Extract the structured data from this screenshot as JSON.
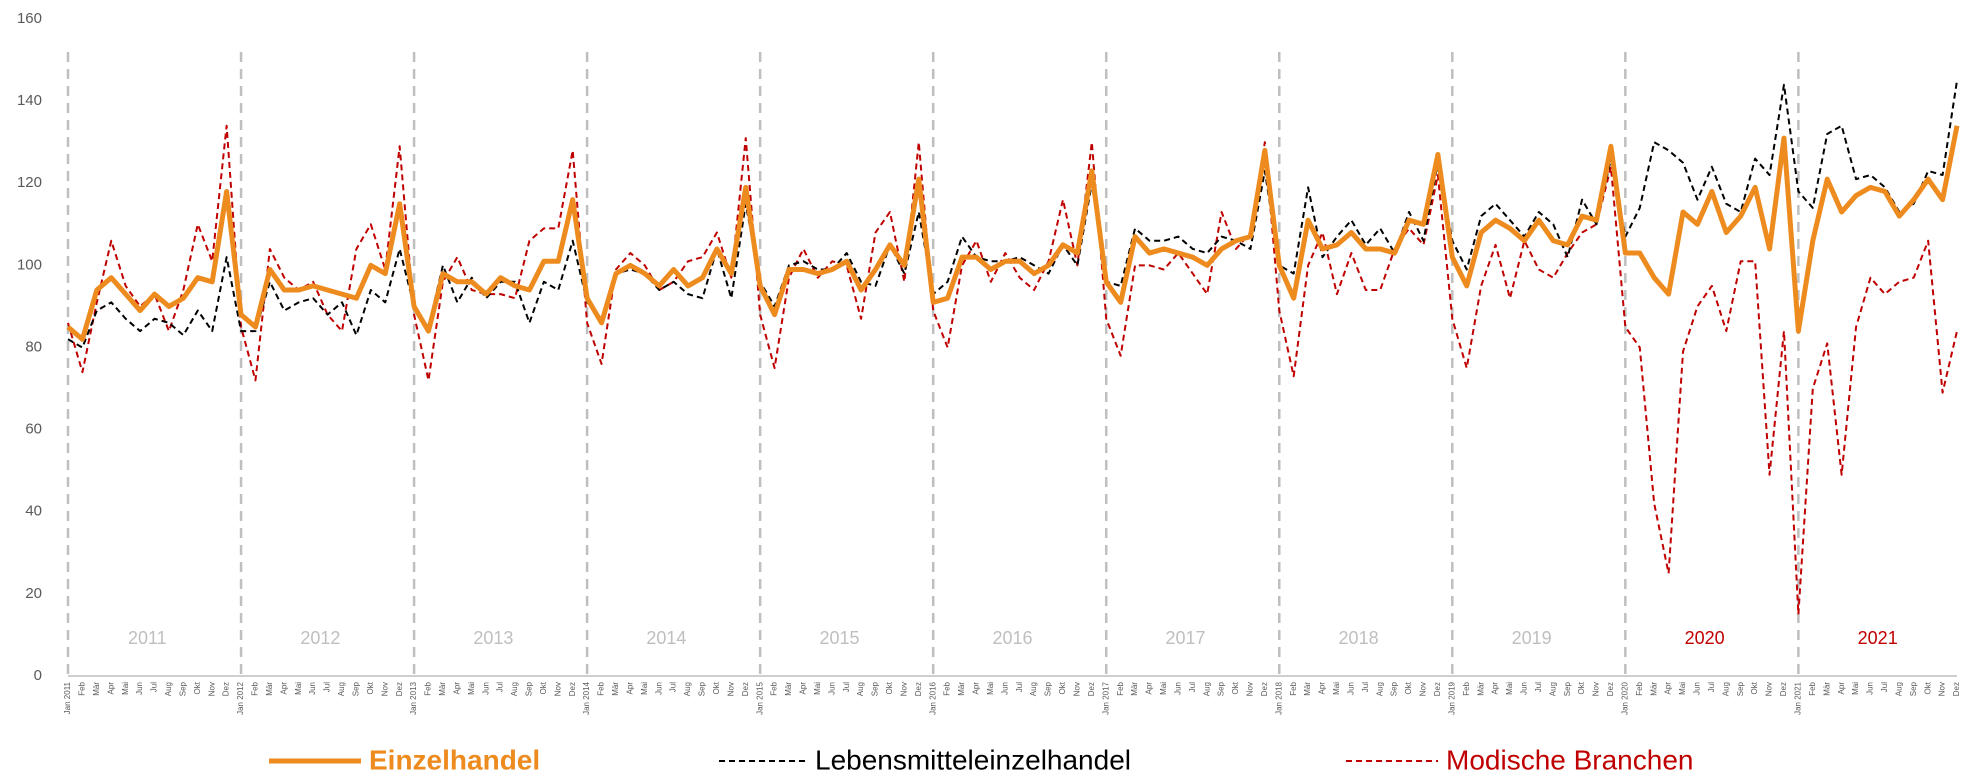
{
  "chart_data": {
    "type": "line",
    "categories": [
      "Jan 2011",
      "Feb",
      "Mär",
      "Apr",
      "Mai",
      "Jun",
      "Jul",
      "Aug",
      "Sep",
      "Okt",
      "Nov",
      "Dez",
      "Jan 2012",
      "Feb",
      "Mär",
      "Apr",
      "Mai",
      "Jun",
      "Jul",
      "Aug",
      "Sep",
      "Okt",
      "Nov",
      "Dez",
      "Jan 2013",
      "Feb",
      "Mär",
      "Apr",
      "Mai",
      "Jun",
      "Jul",
      "Aug",
      "Sep",
      "Okt",
      "Nov",
      "Dez",
      "Jan 2014",
      "Feb",
      "Mär",
      "Apr",
      "Mai",
      "Jun",
      "Jul",
      "Aug",
      "Sep",
      "Okt",
      "Nov",
      "Dez",
      "Jan 2015",
      "Feb",
      "Mär",
      "Apr",
      "Mai",
      "Jun",
      "Jul",
      "Aug",
      "Sep",
      "Okt",
      "Nov",
      "Dez",
      "Jan 2016",
      "Feb",
      "Mär",
      "Apr",
      "Mai",
      "Jun",
      "Jul",
      "Aug",
      "Sep",
      "Okt",
      "Nov",
      "Dez",
      "Jan 2017",
      "Feb",
      "Mär",
      "Apr",
      "Mai",
      "Jun",
      "Jul",
      "Aug",
      "Sep",
      "Okt",
      "Nov",
      "Dez",
      "Jan 2018",
      "Feb",
      "Mär",
      "Apr",
      "Mai",
      "Jun",
      "Jul",
      "Aug",
      "Sep",
      "Okt",
      "Nov",
      "Dez",
      "Jan 2019",
      "Feb",
      "Mär",
      "Apr",
      "Mai",
      "Jun",
      "Jul",
      "Aug",
      "Sep",
      "Okt",
      "Nov",
      "Dez",
      "Jan 2020",
      "Feb",
      "Mär",
      "Apr",
      "Mai",
      "Jun",
      "Jul",
      "Aug",
      "Sep",
      "Okt",
      "Nov",
      "Dez",
      "Jan 2021",
      "Feb",
      "Mär",
      "Apr",
      "Mai",
      "Jun",
      "Jul",
      "Aug",
      "Sep",
      "Okt",
      "Nov",
      "Dez"
    ],
    "series": [
      {
        "name": "Einzelhandel",
        "color": "#ed8b1f",
        "values": [
          85,
          82,
          94,
          97,
          93,
          89,
          93,
          90,
          92,
          97,
          96,
          118,
          88,
          85,
          99,
          94,
          94,
          95,
          94,
          93,
          92,
          100,
          98,
          115,
          90,
          84,
          98,
          96,
          96,
          93,
          97,
          95,
          94,
          101,
          101,
          116,
          92,
          86,
          98,
          100,
          98,
          95,
          99,
          95,
          97,
          104,
          98,
          119,
          95,
          88,
          99,
          99,
          98,
          99,
          101,
          94,
          99,
          105,
          100,
          121,
          91,
          92,
          102,
          102,
          99,
          101,
          101,
          98,
          100,
          105,
          103,
          123,
          96,
          91,
          107,
          103,
          104,
          103,
          102,
          100,
          104,
          106,
          107,
          128,
          100,
          92,
          111,
          104,
          105,
          108,
          104,
          104,
          103,
          111,
          110,
          127,
          102,
          95,
          108,
          111,
          109,
          106,
          111,
          106,
          105,
          112,
          111,
          129,
          103,
          103,
          97,
          93,
          113,
          110,
          118,
          108,
          112,
          119,
          104,
          131,
          84,
          106,
          121,
          113,
          117,
          119,
          118,
          112,
          116,
          121,
          116,
          134
        ]
      },
      {
        "name": "Lebensmitteleinzelhandel",
        "color": "#000000",
        "values": [
          82,
          80,
          89,
          91,
          87,
          84,
          87,
          86,
          83,
          89,
          84,
          102,
          84,
          84,
          96,
          89,
          91,
          92,
          88,
          91,
          83,
          94,
          91,
          104,
          90,
          85,
          100,
          91,
          97,
          92,
          96,
          96,
          86,
          96,
          94,
          106,
          91,
          87,
          98,
          99,
          98,
          94,
          96,
          93,
          92,
          104,
          92,
          115,
          96,
          90,
          100,
          101,
          99,
          99,
          103,
          96,
          95,
          105,
          98,
          113,
          93,
          96,
          107,
          102,
          101,
          101,
          102,
          100,
          98,
          105,
          100,
          120,
          96,
          95,
          109,
          106,
          106,
          107,
          104,
          103,
          107,
          106,
          104,
          123,
          100,
          98,
          119,
          102,
          107,
          111,
          105,
          109,
          103,
          113,
          106,
          125,
          106,
          99,
          112,
          115,
          111,
          107,
          113,
          110,
          102,
          116,
          110,
          126,
          107,
          114,
          130,
          128,
          125,
          116,
          124,
          115,
          113,
          126,
          122,
          144,
          118,
          114,
          132,
          134,
          121,
          122,
          119,
          113,
          115,
          123,
          122,
          145
        ]
      },
      {
        "name": "Modische Branchen",
        "color": "#c00000",
        "values": [
          86,
          74,
          91,
          106,
          95,
          90,
          93,
          84,
          94,
          110,
          101,
          134,
          85,
          72,
          104,
          97,
          94,
          96,
          88,
          84,
          104,
          110,
          99,
          129,
          88,
          72,
          96,
          102,
          94,
          93,
          93,
          92,
          106,
          109,
          109,
          128,
          86,
          76,
          99,
          103,
          100,
          94,
          96,
          101,
          102,
          108,
          97,
          131,
          88,
          75,
          97,
          104,
          97,
          101,
          100,
          87,
          108,
          113,
          96,
          130,
          89,
          80,
          100,
          106,
          96,
          103,
          97,
          94,
          101,
          116,
          100,
          130,
          87,
          78,
          100,
          100,
          99,
          103,
          98,
          93,
          113,
          104,
          108,
          130,
          89,
          73,
          100,
          108,
          93,
          103,
          94,
          94,
          104,
          109,
          105,
          122,
          87,
          75,
          95,
          105,
          92,
          106,
          99,
          97,
          103,
          108,
          110,
          124,
          85,
          80,
          42,
          25,
          79,
          90,
          95,
          84,
          101,
          101,
          49,
          84,
          15,
          70,
          81,
          49,
          85,
          97,
          93,
          96,
          97,
          106,
          69,
          84
        ]
      }
    ],
    "annotations": [
      {
        "text": "2011",
        "color": "#bfbfbf"
      },
      {
        "text": "2012",
        "color": "#bfbfbf"
      },
      {
        "text": "2013",
        "color": "#bfbfbf"
      },
      {
        "text": "2014",
        "color": "#bfbfbf"
      },
      {
        "text": "2015",
        "color": "#bfbfbf"
      },
      {
        "text": "2016",
        "color": "#bfbfbf"
      },
      {
        "text": "2017",
        "color": "#bfbfbf"
      },
      {
        "text": "2018",
        "color": "#bfbfbf"
      },
      {
        "text": "2019",
        "color": "#bfbfbf"
      },
      {
        "text": "2020",
        "color": "#c00000"
      },
      {
        "text": "2021",
        "color": "#c00000"
      }
    ],
    "ylim": [
      0,
      160
    ],
    "yticks": [
      0,
      20,
      40,
      60,
      80,
      100,
      120,
      140,
      160
    ],
    "grid": false,
    "legend": "bottom"
  }
}
